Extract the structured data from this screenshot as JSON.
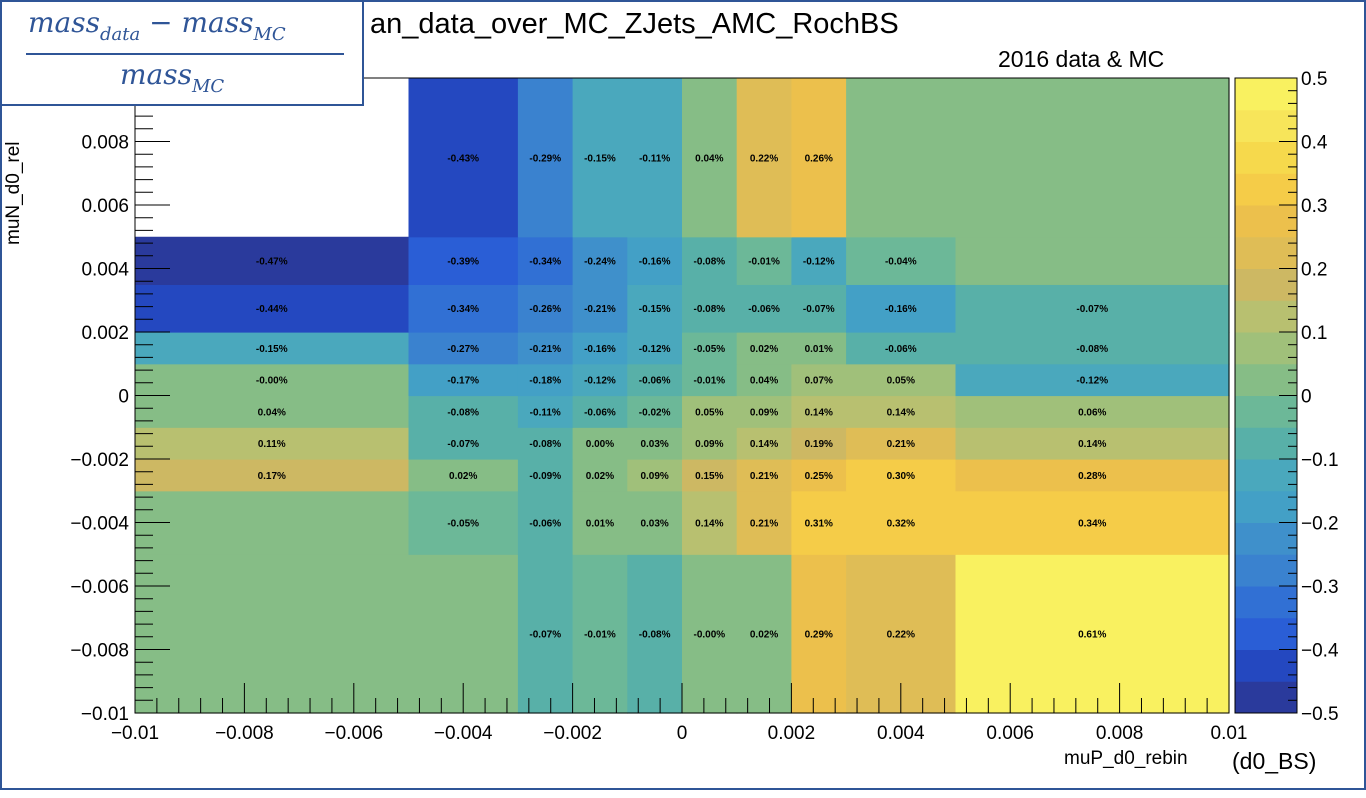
{
  "chart_data": {
    "type": "heatmap",
    "title": "an_data_over_MC_ZJets_AMC_RochBS",
    "subtitle": "2016 data & MC",
    "xlabel": "muP_d0_rebin",
    "xlabel_extra": "(d0_BS)",
    "ylabel": "muN_d0_rel",
    "formula": {
      "num_left": "mass",
      "num_left_sub": "data",
      "minus": "−",
      "num_right": "mass",
      "num_right_sub": "MC",
      "den": "mass",
      "den_sub": "MC"
    },
    "xlim": [
      -0.01,
      0.01
    ],
    "ylim": [
      -0.01,
      0.01
    ],
    "zlim": [
      -0.5,
      0.5
    ],
    "x_ticks": [
      "−0.01",
      "−0.008",
      "−0.006",
      "−0.004",
      "−0.002",
      "0",
      "0.002",
      "0.004",
      "0.006",
      "0.008",
      "0.01"
    ],
    "y_ticks": [
      "−0.01",
      "−0.008",
      "−0.006",
      "−0.004",
      "−0.002",
      "0",
      "0.002",
      "0.004",
      "0.006",
      "0.008"
    ],
    "z_ticks": [
      "−0.5",
      "−0.4",
      "−0.3",
      "−0.2",
      "−0.1",
      "0",
      "0.1",
      "0.2",
      "0.3",
      "0.4",
      "0.5"
    ],
    "x_edges": [
      -0.01,
      -0.005,
      -0.003,
      -0.002,
      -0.001,
      0,
      0.001,
      0.002,
      0.003,
      0.005,
      0.01
    ],
    "y_edges": [
      -0.01,
      -0.005,
      -0.003,
      -0.002,
      -0.001,
      0,
      0.001,
      0.002,
      0.0035,
      0.005,
      0.01
    ],
    "z": [
      [
        0.0,
        0.0,
        -0.07,
        -0.01,
        -0.08,
        -0.0,
        0.02,
        0.29,
        0.22,
        0.61
      ],
      [
        0.0,
        -0.05,
        -0.06,
        0.01,
        0.03,
        0.14,
        0.21,
        0.31,
        0.32,
        0.34
      ],
      [
        0.17,
        0.02,
        -0.09,
        0.02,
        0.09,
        0.15,
        0.21,
        0.25,
        0.3,
        0.28
      ],
      [
        0.11,
        -0.07,
        -0.08,
        0.0,
        0.03,
        0.09,
        0.14,
        0.19,
        0.21,
        0.14
      ],
      [
        0.04,
        -0.08,
        -0.11,
        -0.06,
        -0.02,
        0.05,
        0.09,
        0.14,
        0.14,
        0.06
      ],
      [
        -0.0,
        -0.17,
        -0.18,
        -0.12,
        -0.06,
        -0.01,
        0.04,
        0.07,
        0.05,
        -0.12
      ],
      [
        -0.15,
        -0.27,
        -0.21,
        -0.16,
        -0.12,
        -0.05,
        0.02,
        0.01,
        -0.06,
        -0.08
      ],
      [
        -0.44,
        -0.34,
        -0.26,
        -0.21,
        -0.15,
        -0.08,
        -0.06,
        -0.07,
        -0.16,
        -0.07
      ],
      [
        -0.47,
        -0.39,
        -0.34,
        -0.24,
        -0.16,
        -0.08,
        -0.01,
        -0.12,
        -0.04,
        0.0
      ],
      [
        null,
        -0.43,
        -0.29,
        -0.15,
        -0.11,
        0.04,
        0.22,
        0.26,
        0.0,
        0.0
      ]
    ],
    "labels": [
      [
        "",
        "",
        "-0.07%",
        "-0.01%",
        "-0.08%",
        "-0.00%",
        "0.02%",
        "0.29%",
        "0.22%",
        "0.61%"
      ],
      [
        "",
        "-0.05%",
        "-0.06%",
        "0.01%",
        "0.03%",
        "0.14%",
        "0.21%",
        "0.31%",
        "0.32%",
        "0.34%"
      ],
      [
        "0.17%",
        "0.02%",
        "-0.09%",
        "0.02%",
        "0.09%",
        "0.15%",
        "0.21%",
        "0.25%",
        "0.30%",
        "0.28%"
      ],
      [
        "0.11%",
        "-0.07%",
        "-0.08%",
        "0.00%",
        "0.03%",
        "0.09%",
        "0.14%",
        "0.19%",
        "0.21%",
        "0.14%"
      ],
      [
        "0.04%",
        "-0.08%",
        "-0.11%",
        "-0.06%",
        "-0.02%",
        "0.05%",
        "0.09%",
        "0.14%",
        "0.14%",
        "0.06%"
      ],
      [
        "-0.00%",
        "-0.17%",
        "-0.18%",
        "-0.12%",
        "-0.06%",
        "-0.01%",
        "0.04%",
        "0.07%",
        "0.05%",
        "-0.12%"
      ],
      [
        "-0.15%",
        "-0.27%",
        "-0.21%",
        "-0.16%",
        "-0.12%",
        "-0.05%",
        "0.02%",
        "0.01%",
        "-0.06%",
        "-0.08%"
      ],
      [
        "-0.44%",
        "-0.34%",
        "-0.26%",
        "-0.21%",
        "-0.15%",
        "-0.08%",
        "-0.06%",
        "-0.07%",
        "-0.16%",
        "-0.07%"
      ],
      [
        "-0.47%",
        "-0.39%",
        "-0.34%",
        "-0.24%",
        "-0.16%",
        "-0.08%",
        "-0.01%",
        "-0.12%",
        "-0.04%",
        ""
      ],
      [
        "",
        "-0.43%",
        "-0.29%",
        "-0.15%",
        "-0.11%",
        "0.04%",
        "0.22%",
        "0.26%",
        "",
        ""
      ]
    ],
    "palette": [
      "#2a3a9c",
      "#2448c0",
      "#2a5ed6",
      "#3170d4",
      "#3a82cf",
      "#3f90cb",
      "#43a0c6",
      "#4aa8bd",
      "#58b0a8",
      "#6cb898",
      "#86bd86",
      "#a0c07a",
      "#b8c070",
      "#cdb863",
      "#dfbd56",
      "#ecc04c",
      "#f5cc48",
      "#f6d94c",
      "#f7e55a",
      "#f9f160"
    ]
  }
}
